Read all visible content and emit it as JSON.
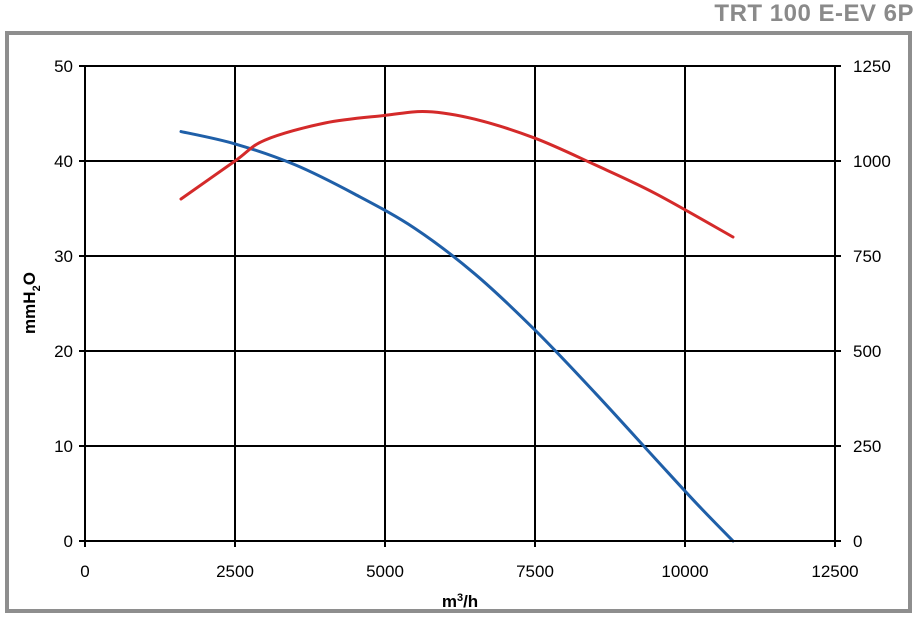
{
  "title": "TRT 100 E-EV 6P",
  "chart_data": {
    "type": "line",
    "xlabel": "m³/h",
    "ylabel": "mmH₂O",
    "y2label": "",
    "xlim": [
      0,
      12500
    ],
    "ylim": [
      0,
      50
    ],
    "y2lim": [
      0,
      1250
    ],
    "x_ticks": [
      "0",
      "2500",
      "5000",
      "7500",
      "10000",
      "12500"
    ],
    "y_ticks": [
      "0",
      "10",
      "20",
      "30",
      "40",
      "50"
    ],
    "y2_ticks": [
      "0",
      "250",
      "500",
      "750",
      "1000",
      "1250"
    ],
    "grid": true,
    "series": [
      {
        "axis": "left",
        "color": "#1f5fa8",
        "points": [
          [
            1600,
            43.1
          ],
          [
            2500,
            41.8
          ],
          [
            3500,
            39.6
          ],
          [
            4500,
            36.5
          ],
          [
            5500,
            32.9
          ],
          [
            6500,
            28.1
          ],
          [
            7500,
            22.2
          ],
          [
            8500,
            15.6
          ],
          [
            9500,
            8.7
          ],
          [
            10200,
            3.9
          ],
          [
            10800,
            0
          ]
        ]
      },
      {
        "axis": "right",
        "color": "#d42a2a",
        "points": [
          [
            1600,
            900
          ],
          [
            2500,
            1000
          ],
          [
            3000,
            1055
          ],
          [
            4000,
            1100
          ],
          [
            5000,
            1120
          ],
          [
            5700,
            1130
          ],
          [
            6500,
            1110
          ],
          [
            7500,
            1060
          ],
          [
            8500,
            990
          ],
          [
            9500,
            915
          ],
          [
            10800,
            800
          ]
        ]
      }
    ]
  }
}
